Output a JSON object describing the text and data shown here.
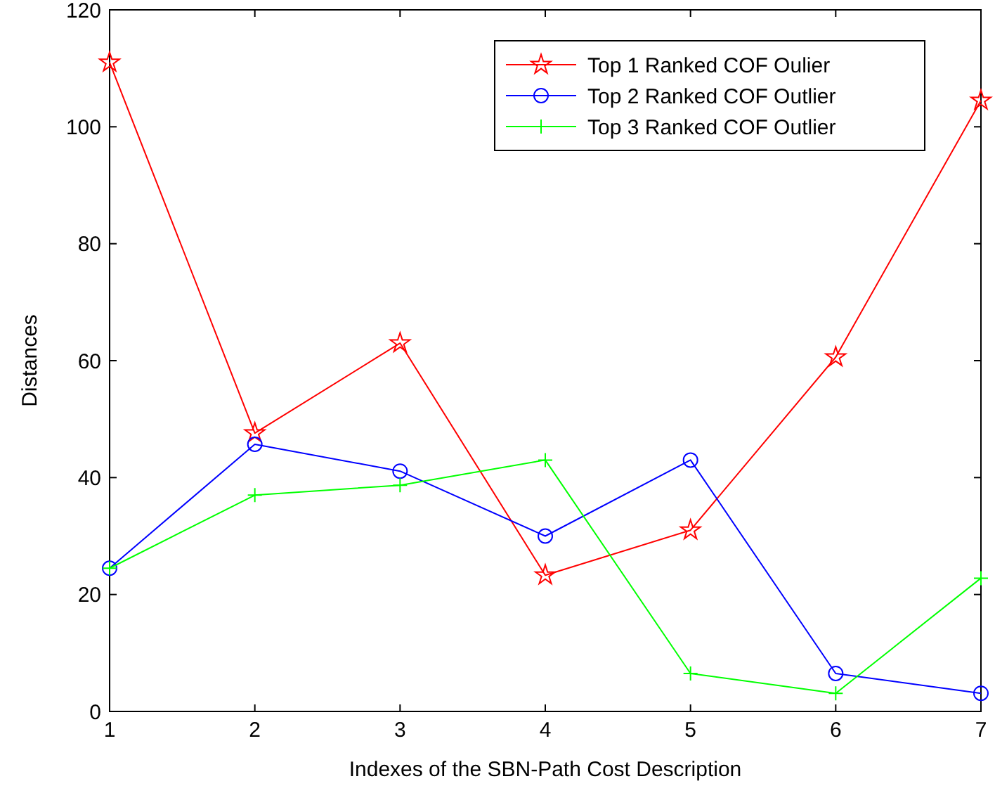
{
  "chart_data": {
    "type": "line",
    "xlabel": "Indexes of the SBN-Path Cost Description",
    "ylabel": "Distances",
    "x": [
      1,
      2,
      3,
      4,
      5,
      6,
      7
    ],
    "xlim": [
      1,
      7
    ],
    "xticks": [
      1,
      2,
      3,
      4,
      5,
      6,
      7
    ],
    "ylim": [
      0,
      120
    ],
    "yticks": [
      0,
      20,
      40,
      60,
      80,
      100,
      120
    ],
    "legend": "top right",
    "grid": false,
    "series": [
      {
        "name": "Top 1 Ranked COF Oulier",
        "color": "#ff0000",
        "marker": "star",
        "values": [
          111,
          47.6,
          63,
          23.3,
          31,
          60.6,
          104.5
        ]
      },
      {
        "name": "Top 2 Ranked COF Outlier",
        "color": "#0000ff",
        "marker": "circle",
        "values": [
          24.5,
          45.7,
          41.1,
          30,
          43,
          6.5,
          3.1
        ]
      },
      {
        "name": "Top 3 Ranked COF Outlier",
        "color": "#00ff00",
        "marker": "cross",
        "values": [
          24.5,
          37,
          38.7,
          43,
          6.5,
          3.1,
          22.8
        ]
      }
    ]
  }
}
